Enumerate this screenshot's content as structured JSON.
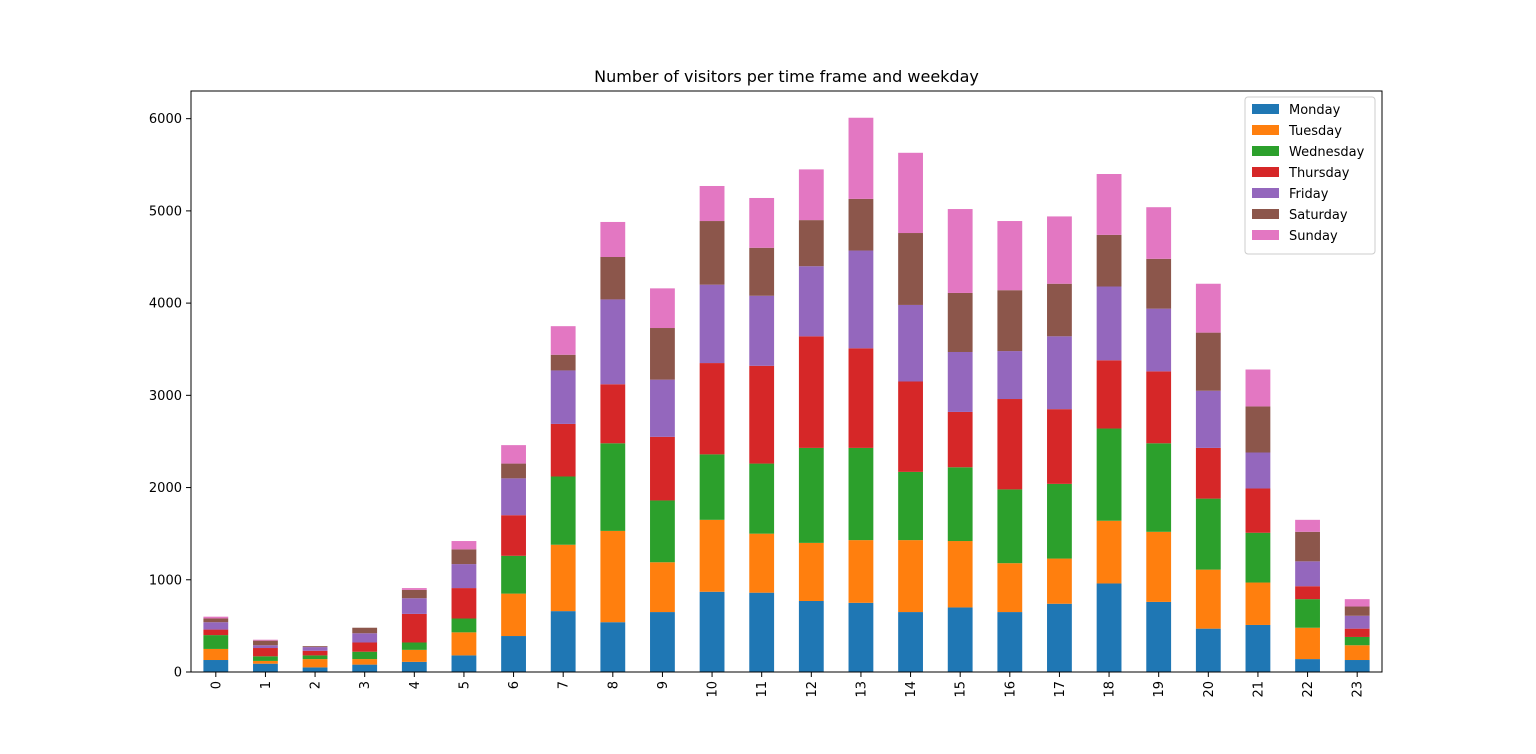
{
  "chart_data": {
    "type": "bar",
    "stacked": true,
    "title": "Number of visitors per time frame and weekday",
    "xlabel": "",
    "ylabel": "",
    "categories": [
      "0",
      "1",
      "2",
      "3",
      "4",
      "5",
      "6",
      "7",
      "8",
      "9",
      "10",
      "11",
      "12",
      "13",
      "14",
      "15",
      "16",
      "17",
      "18",
      "19",
      "20",
      "21",
      "22",
      "23"
    ],
    "ylim": [
      0,
      6300
    ],
    "yticks": [
      0,
      1000,
      2000,
      3000,
      4000,
      5000,
      6000
    ],
    "grid": false,
    "legend_position": "top-right",
    "series": [
      {
        "name": "Monday",
        "color": "#1f77b4",
        "values": [
          130,
          90,
          50,
          80,
          110,
          180,
          390,
          660,
          540,
          650,
          870,
          860,
          770,
          750,
          650,
          700,
          650,
          740,
          960,
          760,
          470,
          510,
          140,
          130
        ]
      },
      {
        "name": "Tuesday",
        "color": "#ff7f0e",
        "values": [
          120,
          30,
          90,
          60,
          130,
          250,
          460,
          720,
          990,
          540,
          780,
          640,
          630,
          680,
          780,
          720,
          530,
          490,
          680,
          760,
          640,
          460,
          340,
          160
        ]
      },
      {
        "name": "Wednesday",
        "color": "#2ca02c",
        "values": [
          150,
          50,
          40,
          80,
          80,
          150,
          410,
          740,
          950,
          670,
          710,
          760,
          1030,
          1000,
          740,
          800,
          800,
          810,
          1000,
          960,
          770,
          540,
          310,
          90
        ]
      },
      {
        "name": "Thursday",
        "color": "#d62728",
        "values": [
          60,
          90,
          50,
          100,
          310,
          330,
          440,
          570,
          640,
          690,
          990,
          1060,
          1210,
          1080,
          980,
          600,
          980,
          810,
          740,
          780,
          550,
          480,
          140,
          90
        ]
      },
      {
        "name": "Friday",
        "color": "#9467bd",
        "values": [
          80,
          30,
          40,
          100,
          170,
          260,
          400,
          580,
          920,
          620,
          850,
          760,
          760,
          1060,
          830,
          650,
          520,
          790,
          800,
          680,
          620,
          390,
          270,
          140
        ]
      },
      {
        "name": "Saturday",
        "color": "#8c564b",
        "values": [
          40,
          50,
          10,
          60,
          90,
          160,
          160,
          170,
          460,
          560,
          690,
          520,
          500,
          560,
          780,
          640,
          660,
          570,
          560,
          540,
          630,
          500,
          320,
          100
        ]
      },
      {
        "name": "Sunday",
        "color": "#e377c2",
        "values": [
          20,
          10,
          0,
          0,
          20,
          90,
          200,
          310,
          380,
          430,
          380,
          540,
          550,
          880,
          870,
          910,
          750,
          730,
          660,
          560,
          530,
          400,
          130,
          80
        ]
      }
    ]
  }
}
